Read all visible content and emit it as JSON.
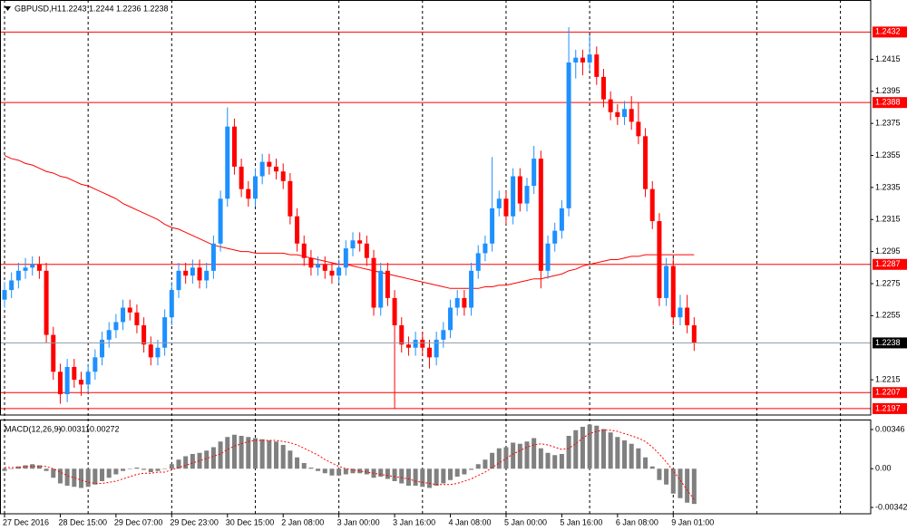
{
  "chart_data": [
    {
      "type": "candlestick",
      "title": "GBPUSD,H1",
      "title_values": [
        1.2243,
        1.2244,
        1.2236,
        1.2238
      ],
      "categories": [
        "27 Dec 2016",
        null,
        null,
        null,
        null,
        null,
        null,
        null,
        "28 Dec 15:00",
        null,
        null,
        null,
        null,
        null,
        null,
        null,
        "29 Dec 07:00",
        null,
        null,
        null,
        null,
        null,
        null,
        null,
        "29 Dec 23:00",
        null,
        null,
        null,
        null,
        null,
        null,
        null,
        "30 Dec 15:00",
        null,
        null,
        null,
        null,
        null,
        null,
        null,
        "2 Jan 08:00",
        null,
        null,
        null,
        null,
        null,
        null,
        null,
        "3 Jan 00:00",
        null,
        null,
        null,
        null,
        null,
        null,
        null,
        "3 Jan 16:00",
        null,
        null,
        null,
        null,
        null,
        null,
        null,
        "4 Jan 08:00",
        null,
        null,
        null,
        null,
        null,
        null,
        null,
        "5 Jan 00:00",
        null,
        null,
        null,
        null,
        null,
        null,
        null,
        "5 Jan 16:00",
        null,
        null,
        null,
        null,
        null,
        null,
        null,
        "6 Jan 08:00",
        null,
        null,
        null,
        null,
        null,
        null,
        null,
        "9 Jan 01:00",
        null,
        null,
        null
      ],
      "open": [
        1.2265,
        1.2271,
        1.2277,
        1.2283,
        1.2285,
        1.2287,
        1.2283,
        1.2243,
        1.222,
        1.2206,
        1.2223,
        1.2215,
        1.2212,
        1.222,
        1.2229,
        1.224,
        1.2246,
        1.2251,
        1.226,
        1.2257,
        1.2249,
        1.2237,
        1.2229,
        1.2235,
        1.2254,
        1.2271,
        1.2283,
        1.228,
        1.2285,
        1.2277,
        1.2283,
        1.23,
        1.2328,
        1.2373,
        1.2348,
        1.2334,
        1.2328,
        1.2342,
        1.2351,
        1.2348,
        1.2345,
        1.2339,
        1.2317,
        1.23,
        1.2291,
        1.2285,
        1.2287,
        1.2283,
        1.228,
        1.2285,
        1.2297,
        1.2302,
        1.23,
        1.2291,
        1.226,
        1.2283,
        1.2266,
        1.2249,
        1.2237,
        1.2235,
        1.224,
        1.2235,
        1.2229,
        1.224,
        1.2246,
        1.226,
        1.2266,
        1.226,
        1.2283,
        1.2294,
        1.23,
        1.2322,
        1.2328,
        1.2317,
        1.2342,
        1.2325,
        1.2336,
        1.2353,
        1.2283,
        1.23,
        1.2308,
        1.2322,
        1.2413,
        1.2416,
        1.2413,
        1.2418,
        1.2404,
        1.239,
        1.2382,
        1.2379,
        1.2384,
        1.2376,
        1.2367,
        1.2334,
        1.2314,
        1.2266,
        1.2286,
        1.2254,
        1.226,
        1.2249
      ],
      "high": [
        1.2276,
        1.2282,
        1.2288,
        1.2291,
        1.2292,
        1.2292,
        1.2288,
        1.2248,
        1.2225,
        1.2228,
        1.2228,
        1.222,
        1.2225,
        1.2234,
        1.2245,
        1.2251,
        1.2256,
        1.2265,
        1.2265,
        1.2262,
        1.2254,
        1.2242,
        1.224,
        1.2259,
        1.2276,
        1.2288,
        1.2288,
        1.229,
        1.229,
        1.2288,
        1.2305,
        1.2333,
        1.2385,
        1.2378,
        1.2353,
        1.2339,
        1.2347,
        1.2356,
        1.2356,
        1.2353,
        1.235,
        1.2344,
        1.2322,
        1.2305,
        1.2296,
        1.2292,
        1.2292,
        1.2288,
        1.229,
        1.2302,
        1.2307,
        1.2307,
        1.2305,
        1.2296,
        1.2288,
        1.2288,
        1.2271,
        1.2254,
        1.2242,
        1.2245,
        1.2245,
        1.224,
        1.2245,
        1.2251,
        1.2265,
        1.2271,
        1.2271,
        1.2288,
        1.2299,
        1.2305,
        1.2354,
        1.2333,
        1.2333,
        1.2347,
        1.2347,
        1.2341,
        1.2361,
        1.2358,
        1.2305,
        1.2313,
        1.2327,
        1.2435,
        1.2421,
        1.2421,
        1.243,
        1.2423,
        1.2409,
        1.2395,
        1.2387,
        1.2389,
        1.2392,
        1.2388,
        1.2372,
        1.2339,
        1.2319,
        1.2291,
        1.2291,
        1.2268,
        1.2268,
        1.2254
      ],
      "low": [
        1.226,
        1.2266,
        1.2272,
        1.2278,
        1.228,
        1.2278,
        1.2238,
        1.2215,
        1.22,
        1.2201,
        1.221,
        1.2205,
        1.2207,
        1.2215,
        1.2224,
        1.2235,
        1.2241,
        1.2246,
        1.2252,
        1.2244,
        1.2232,
        1.2224,
        1.2224,
        1.223,
        1.2249,
        1.2266,
        1.2275,
        1.2275,
        1.2272,
        1.2272,
        1.2278,
        1.2295,
        1.2323,
        1.2343,
        1.2329,
        1.2323,
        1.2323,
        1.2337,
        1.2343,
        1.234,
        1.2334,
        1.2312,
        1.2295,
        1.2286,
        1.228,
        1.228,
        1.2278,
        1.2275,
        1.2275,
        1.228,
        1.2292,
        1.2295,
        1.2286,
        1.2255,
        1.2255,
        1.2261,
        1.2197,
        1.2232,
        1.223,
        1.223,
        1.223,
        1.2222,
        1.2224,
        1.2235,
        1.2241,
        1.2255,
        1.2255,
        1.2255,
        1.2278,
        1.2289,
        1.2295,
        1.2317,
        1.2312,
        1.2312,
        1.232,
        1.232,
        1.2331,
        1.2272,
        1.2278,
        1.2295,
        1.2303,
        1.2317,
        1.2403,
        1.2405,
        1.2408,
        1.2399,
        1.2385,
        1.2377,
        1.2374,
        1.2374,
        1.2371,
        1.2362,
        1.2329,
        1.2309,
        1.2261,
        1.2261,
        1.2249,
        1.2249,
        1.2244,
        1.2233
      ],
      "close": [
        1.2271,
        1.2277,
        1.2283,
        1.2285,
        1.2287,
        1.2283,
        1.2243,
        1.222,
        1.2206,
        1.2223,
        1.2215,
        1.2212,
        1.222,
        1.2229,
        1.224,
        1.2246,
        1.2251,
        1.226,
        1.2257,
        1.2249,
        1.2237,
        1.2229,
        1.2235,
        1.2254,
        1.2271,
        1.2283,
        1.228,
        1.2285,
        1.2277,
        1.2283,
        1.23,
        1.2328,
        1.2373,
        1.2348,
        1.2334,
        1.2328,
        1.2342,
        1.2351,
        1.2348,
        1.2345,
        1.2339,
        1.2317,
        1.23,
        1.2291,
        1.2285,
        1.2287,
        1.2283,
        1.228,
        1.2285,
        1.2297,
        1.2302,
        1.23,
        1.2291,
        1.226,
        1.2283,
        1.2266,
        1.2249,
        1.2237,
        1.2235,
        1.224,
        1.2235,
        1.2229,
        1.224,
        1.2246,
        1.226,
        1.2266,
        1.226,
        1.2283,
        1.2294,
        1.23,
        1.2322,
        1.2328,
        1.2317,
        1.2342,
        1.2325,
        1.2336,
        1.2353,
        1.2283,
        1.23,
        1.2308,
        1.2322,
        1.2413,
        1.2416,
        1.2413,
        1.2418,
        1.2404,
        1.239,
        1.2382,
        1.2379,
        1.2384,
        1.2376,
        1.2367,
        1.2334,
        1.2314,
        1.2266,
        1.2286,
        1.2254,
        1.226,
        1.2249,
        1.2238
      ],
      "up_color": "#1e90ff",
      "down_color": "#ff0000",
      "ma": {
        "color": "#ff0000",
        "values": [
          1.2355,
          1.2353,
          1.2352,
          1.235,
          1.2349,
          1.2347,
          1.2345,
          1.2344,
          1.2342,
          1.2341,
          1.2339,
          1.2337,
          1.2336,
          1.2334,
          1.2332,
          1.233,
          1.2328,
          1.2325,
          1.2323,
          1.2321,
          1.2319,
          1.2317,
          1.2315,
          1.2312,
          1.231,
          1.2309,
          1.2307,
          1.2305,
          1.2303,
          1.2301,
          1.2299,
          1.2298,
          1.2297,
          1.2296,
          1.2295,
          1.2295,
          1.2294,
          1.2294,
          1.2294,
          1.2294,
          1.2294,
          1.2293,
          1.2293,
          1.2292,
          1.2291,
          1.229,
          1.2289,
          1.2288,
          1.2287,
          1.2287,
          1.2286,
          1.2285,
          1.2284,
          1.2283,
          1.2282,
          1.2281,
          1.228,
          1.2279,
          1.2278,
          1.2277,
          1.2276,
          1.2275,
          1.2274,
          1.2273,
          1.2272,
          1.2272,
          1.2272,
          1.2272,
          1.2272,
          1.2273,
          1.2273,
          1.2274,
          1.2274,
          1.2275,
          1.2276,
          1.2277,
          1.2278,
          1.2278,
          1.2279,
          1.228,
          1.2281,
          1.2283,
          1.2284,
          1.2286,
          1.2287,
          1.2288,
          1.2289,
          1.229,
          1.229,
          1.2291,
          1.2292,
          1.2292,
          1.2293,
          1.2293,
          1.2293,
          1.2293,
          1.2293,
          1.2293,
          1.2293,
          1.2293
        ]
      },
      "levels": [
        {
          "value": 1.2432,
          "color": "#ff0000"
        },
        {
          "value": 1.2388,
          "color": "#ff0000"
        },
        {
          "value": 1.2287,
          "color": "#ff0000"
        },
        {
          "value": 1.2207,
          "color": "#ff0000"
        },
        {
          "value": 1.2197,
          "color": "#ff0000"
        }
      ],
      "bid": {
        "value": 1.2238,
        "color": "#8c9aa6"
      },
      "ylim": [
        1.2193,
        1.2452
      ],
      "yticks": [
        1.2215,
        1.2255,
        1.2275,
        1.2295,
        1.2315,
        1.2335,
        1.2355,
        1.2375,
        1.2395,
        1.2415
      ]
    },
    {
      "type": "macd",
      "title": "MACD(12,26,9)",
      "title_values": [
        -0.00311,
        -0.00272
      ],
      "histogram": {
        "color": "#808080",
        "values": [
          -0.0002,
          0.0,
          0.0002,
          0.0003,
          0.0004,
          0.0003,
          -0.0002,
          -0.0008,
          -0.0013,
          -0.0015,
          -0.0016,
          -0.0017,
          -0.0016,
          -0.0014,
          -0.0011,
          -0.0008,
          -0.0005,
          -0.0002,
          0.0,
          0.0001,
          -0.0001,
          -0.0003,
          -0.0002,
          0.0,
          0.0004,
          0.0008,
          0.0011,
          0.0013,
          0.0014,
          0.0016,
          0.0019,
          0.0024,
          0.0028,
          0.003,
          0.0029,
          0.0028,
          0.0027,
          0.0026,
          0.0025,
          0.0024,
          0.0021,
          0.0016,
          0.001,
          0.0005,
          0.0001,
          -0.0002,
          -0.0004,
          -0.0006,
          -0.0006,
          -0.0005,
          -0.0004,
          -0.0004,
          -0.0005,
          -0.0008,
          -0.0007,
          -0.0009,
          -0.0011,
          -0.0013,
          -0.0015,
          -0.0015,
          -0.0016,
          -0.0017,
          -0.0015,
          -0.0013,
          -0.001,
          -0.0007,
          -0.0005,
          -0.0001,
          0.0004,
          0.0008,
          0.0014,
          0.0018,
          0.0019,
          0.0023,
          0.0022,
          0.0024,
          0.0027,
          0.0018,
          0.0014,
          0.0012,
          0.0013,
          0.0029,
          0.0034,
          0.0037,
          0.0039,
          0.0038,
          0.0035,
          0.0032,
          0.0028,
          0.0025,
          0.0022,
          0.0018,
          0.001,
          0.0002,
          -0.001,
          -0.0014,
          -0.0022,
          -0.0026,
          -0.003,
          -0.00311
        ]
      },
      "signal": {
        "color": "#ff0000",
        "values": [
          0.0001,
          0.0001,
          0.0001,
          0.0002,
          0.0002,
          0.0002,
          0.0002,
          0.0,
          -0.0003,
          -0.0006,
          -0.0008,
          -0.001,
          -0.0012,
          -0.0013,
          -0.0013,
          -0.0012,
          -0.0011,
          -0.0009,
          -0.0007,
          -0.0005,
          -0.0004,
          -0.0004,
          -0.0003,
          -0.0003,
          -0.0001,
          0.0001,
          0.0003,
          0.0005,
          0.0007,
          0.0009,
          0.0011,
          0.0013,
          0.0017,
          0.002,
          0.0022,
          0.0024,
          0.0025,
          0.0025,
          0.0025,
          0.0025,
          0.0024,
          0.0023,
          0.0021,
          0.0018,
          0.0015,
          0.0012,
          0.0008,
          0.0005,
          0.0002,
          0.0,
          -0.0001,
          -0.0002,
          -0.0003,
          -0.0004,
          -0.0005,
          -0.0006,
          -0.0007,
          -0.0008,
          -0.0009,
          -0.0011,
          -0.0012,
          -0.0013,
          -0.0014,
          -0.0014,
          -0.0014,
          -0.0013,
          -0.0011,
          -0.0009,
          -0.0006,
          -0.0003,
          0.0001,
          0.0005,
          0.0009,
          0.0013,
          0.0016,
          0.0019,
          0.0021,
          0.0022,
          0.0021,
          0.0019,
          0.0017,
          0.0018,
          0.0022,
          0.0027,
          0.0031,
          0.0033,
          0.0034,
          0.0034,
          0.0033,
          0.0031,
          0.0029,
          0.0027,
          0.0024,
          0.0019,
          0.0013,
          0.0006,
          -0.0002,
          -0.001,
          -0.0019,
          -0.00272
        ]
      },
      "ylim": [
        -0.00398,
        0.00434
      ],
      "yticks": [
        0.00346,
        {
          "value": 0,
          "label": "0.00"
        },
        -0.00342
      ]
    }
  ]
}
